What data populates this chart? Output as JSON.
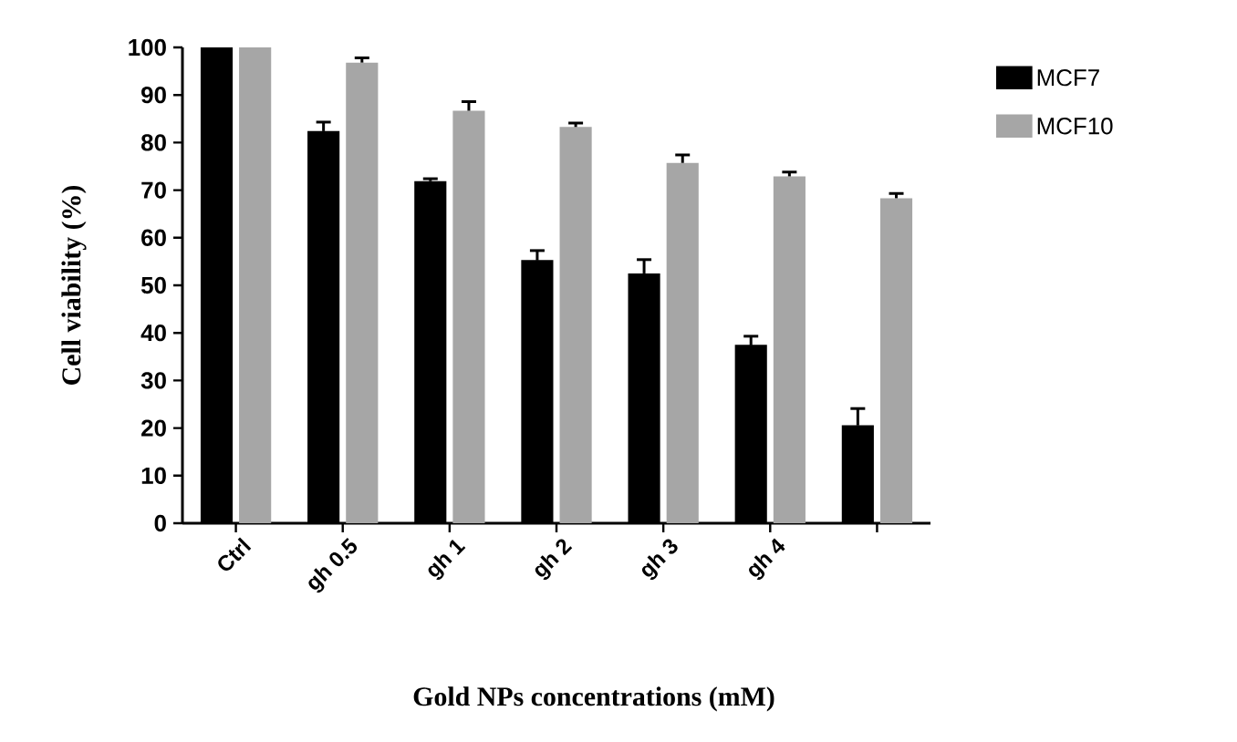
{
  "chart_data": {
    "type": "bar",
    "xlabel": "Gold NPs concentrations (mM)",
    "ylabel": "Cell viability (%)",
    "categories": [
      "Ctrl",
      "gh 0.5",
      "gh 1",
      "gh 2",
      "gh 3",
      "gh 4",
      null
    ],
    "series": [
      {
        "name": "MCF7",
        "color": "#000000",
        "values": [
          100,
          82.4,
          71.9,
          55.3,
          52.5,
          37.5,
          20.6
        ],
        "errors": [
          null,
          1.9,
          0.5,
          2,
          2.9,
          1.8,
          3.5
        ]
      },
      {
        "name": "MCF10",
        "color": "#a6a6a6",
        "values": [
          100,
          96.8,
          86.7,
          83.3,
          75.7,
          72.9,
          68.3
        ],
        "errors": [
          null,
          1,
          1.9,
          0.8,
          1.7,
          0.9,
          1
        ]
      }
    ],
    "ylim": [
      0,
      100
    ],
    "yticks": [
      0,
      10,
      20,
      30,
      40,
      50,
      60,
      70,
      80,
      90,
      100
    ],
    "legend": "right"
  }
}
